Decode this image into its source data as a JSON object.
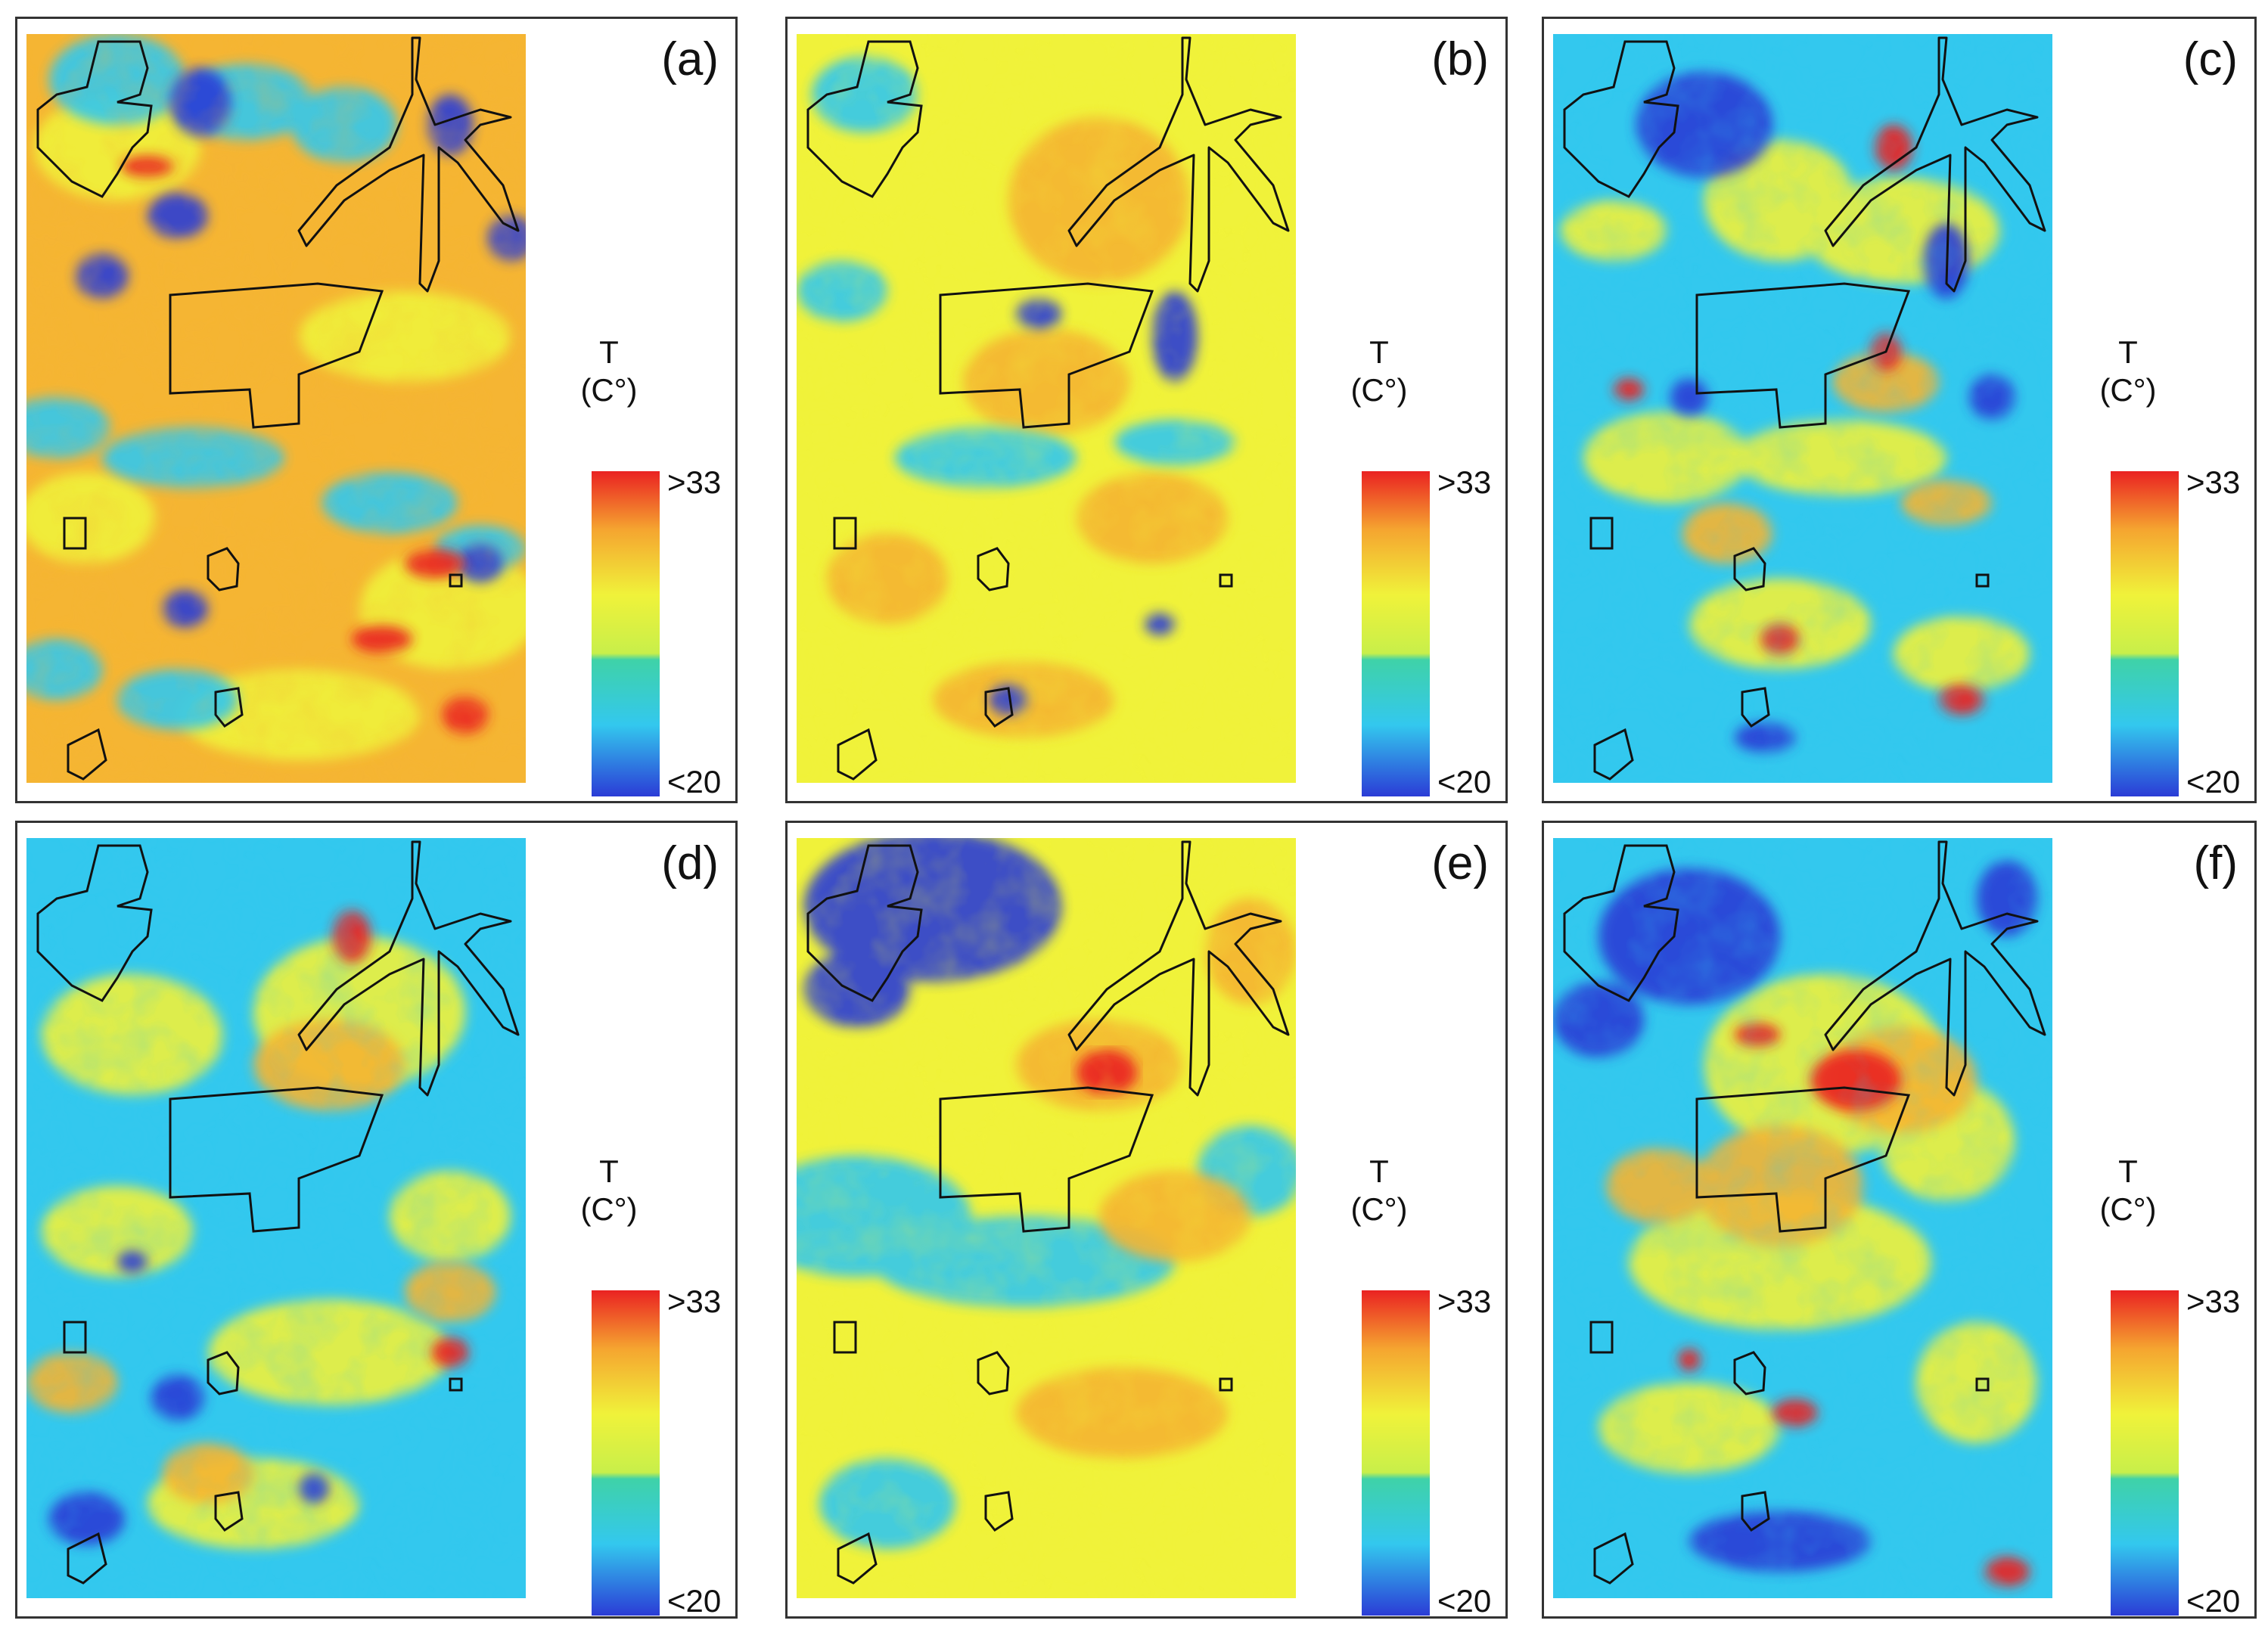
{
  "figure": {
    "colors": {
      "low": "#2b3cd6",
      "cool": "#33c8ee",
      "teal": "#3fd2a8",
      "mid": "#f0f23a",
      "warm": "#f5b533",
      "hot": "#ea2222",
      "outline": "#111111"
    },
    "legend": {
      "title": "T",
      "unit": "(C°)",
      "max_label": ">33",
      "min_label": "<20",
      "max_value": 33,
      "min_value": 20
    },
    "panels": [
      {
        "id": "a",
        "label": "(a)",
        "scheme": "a"
      },
      {
        "id": "b",
        "label": "(b)",
        "scheme": "b"
      },
      {
        "id": "c",
        "label": "(c)",
        "scheme": "c"
      },
      {
        "id": "d",
        "label": "(d)",
        "scheme": "d"
      },
      {
        "id": "e",
        "label": "(e)",
        "scheme": "e"
      },
      {
        "id": "f",
        "label": "(f)",
        "scheme": "f"
      }
    ]
  }
}
